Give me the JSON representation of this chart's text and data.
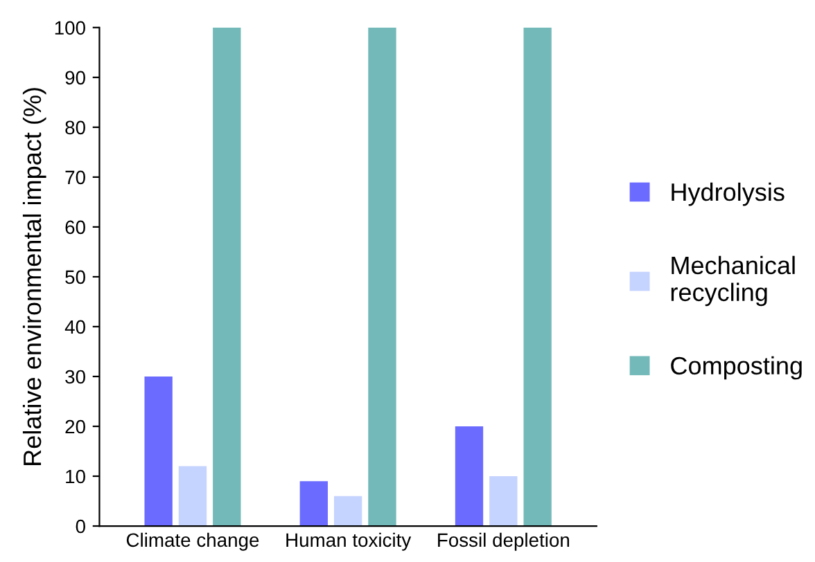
{
  "chart_data": {
    "type": "bar",
    "ylabel": "Relative environmental impact (%)",
    "categories": [
      "Climate change",
      "Human toxicity",
      "Fossil depletion"
    ],
    "series": [
      {
        "name": "Hydrolysis",
        "color": "#6b6bff",
        "values": [
          30,
          9,
          20
        ]
      },
      {
        "name": "Mechanical\nrecycling",
        "color": "#c5d3ff",
        "values": [
          12,
          6,
          10
        ]
      },
      {
        "name": "Composting",
        "color": "#74b9b9",
        "values": [
          100,
          100,
          100
        ]
      }
    ],
    "ylim": [
      0,
      100
    ],
    "yticks": [
      0,
      10,
      20,
      30,
      40,
      50,
      60,
      70,
      80,
      90,
      100
    ],
    "grid": false,
    "legend": "right"
  }
}
